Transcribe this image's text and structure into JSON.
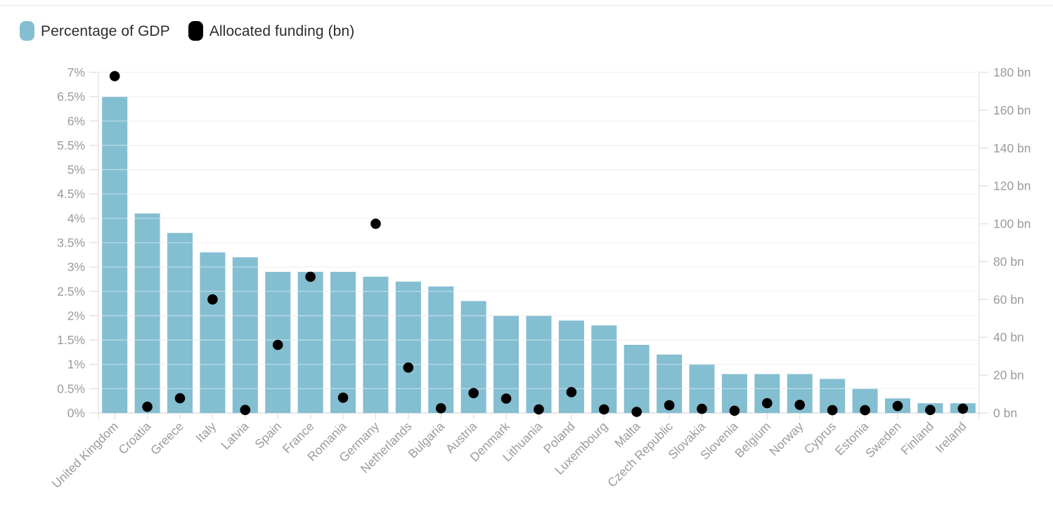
{
  "legend": [
    {
      "label": "Percentage of GDP",
      "color": "#84bed1"
    },
    {
      "label": "Allocated funding (bn)",
      "color": "#000000"
    }
  ],
  "chart_data": {
    "type": "bar",
    "subtype": "dual-axis combo: columns (left % axis) + black point markers (right bn axis)",
    "categories": [
      "United Kingdom",
      "Croatia",
      "Greece",
      "Italy",
      "Latvia",
      "Spain",
      "France",
      "Romania",
      "Germany",
      "Netherlands",
      "Bulgaria",
      "Austria",
      "Denmark",
      "Lithuania",
      "Poland",
      "Luxembourg",
      "Malta",
      "Czech Republic",
      "Slovakia",
      "Slovenia",
      "Belgium",
      "Norway",
      "Cyprus",
      "Estonia",
      "Sweden",
      "Finland",
      "Ireland"
    ],
    "series": [
      {
        "name": "Percentage of GDP",
        "type": "bar",
        "axis": "left",
        "values": [
          6.5,
          4.1,
          3.7,
          3.3,
          3.2,
          2.9,
          2.9,
          2.9,
          2.8,
          2.7,
          2.6,
          2.3,
          2.0,
          2.0,
          1.9,
          1.8,
          1.4,
          1.2,
          1.0,
          0.8,
          0.8,
          0.8,
          0.7,
          0.5,
          0.3,
          0.2,
          0.2
        ]
      },
      {
        "name": "Allocated funding (bn)",
        "type": "scatter",
        "axis": "right",
        "values": [
          178,
          3.3,
          7.8,
          60,
          1.6,
          36,
          72,
          8.1,
          100,
          24,
          2.5,
          10.5,
          7.6,
          1.9,
          11,
          1.9,
          0.6,
          4.1,
          2.2,
          1.2,
          5.2,
          4.3,
          1.5,
          1.5,
          3.7,
          1.6,
          2.3
        ]
      }
    ],
    "left_axis": {
      "min": 0,
      "max": 7,
      "step": 0.5,
      "suffix": "%",
      "ticks": [
        "0%",
        "0.5%",
        "1%",
        "1.5%",
        "2%",
        "2.5%",
        "3%",
        "3.5%",
        "4%",
        "4.5%",
        "5%",
        "5.5%",
        "6%",
        "6.5%",
        "7%"
      ]
    },
    "right_axis": {
      "min": 0,
      "max": 180,
      "step": 20,
      "suffix": " bn",
      "ticks": [
        "0 bn",
        "20 bn",
        "40 bn",
        "60 bn",
        "80 bn",
        "100 bn",
        "120 bn",
        "140 bn",
        "160 bn",
        "180 bn"
      ]
    },
    "grid": true,
    "legend_position": "top-left",
    "x_label_rotation": -45
  },
  "colors": {
    "bar": "#84bed1",
    "dot": "#000000",
    "grid": "#e9e9e9",
    "grid_over_bars": "rgba(255,255,255,0.45)",
    "baseline": "#d6d6d6",
    "axis_line": "#e0e0e0",
    "tick_label": "#9b9b9b",
    "legend_text": "#2d2d2d",
    "top_divider": "#e3e3e3"
  }
}
